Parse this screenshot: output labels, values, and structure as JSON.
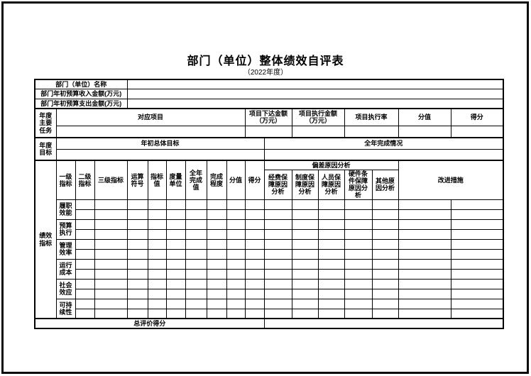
{
  "title": "部门（单位）整体绩效自评表",
  "subtitle": "（2022年度）",
  "colors": {
    "border": "#000000",
    "text": "#000000",
    "background": "#ffffff"
  },
  "info": {
    "name_label": "部门（单位）名称",
    "name_value": "",
    "income_label": "部门年初预算收入金额(万元)",
    "income_value": "",
    "expense_label": "部门年初预算支出金额(万元)",
    "expense_value": ""
  },
  "tasks": {
    "label": "年度主要任务",
    "project": "对应项目",
    "issued_amount": "项目下达金额（万元）",
    "executed_amount": "项目执行金额（万元）",
    "execution_rate": "项目执行率",
    "score_value": "分值",
    "score": "得分"
  },
  "goals": {
    "label": "年度目标",
    "initial": "年初总体目标",
    "completion": "全年完成情况"
  },
  "indicators": {
    "label": "绩效指标",
    "headers": {
      "level1": "一级指标",
      "level2": "二级指标",
      "level3": "三级指标",
      "operator": "运算符号",
      "target_value": "指标值",
      "unit": "度量单位",
      "year_value": "全年完成值",
      "degree": "完成程度",
      "score_value": "分值",
      "score": "得分",
      "deviation_group": "偏差原因分析",
      "dev_fund": "经费保障原因分析",
      "dev_system": "制度保障原因分析",
      "dev_staff": "人员保障原因分析",
      "dev_hardware": "硬件条件保障原因分析",
      "dev_other": "其他原因分析",
      "improvement": "改进措施"
    },
    "groups": [
      "履职效能",
      "预算执行",
      "管理效率",
      "运行成本",
      "社会效应",
      "可持续性"
    ]
  },
  "footer": {
    "total_label": "总评价得分",
    "total_value": ""
  }
}
